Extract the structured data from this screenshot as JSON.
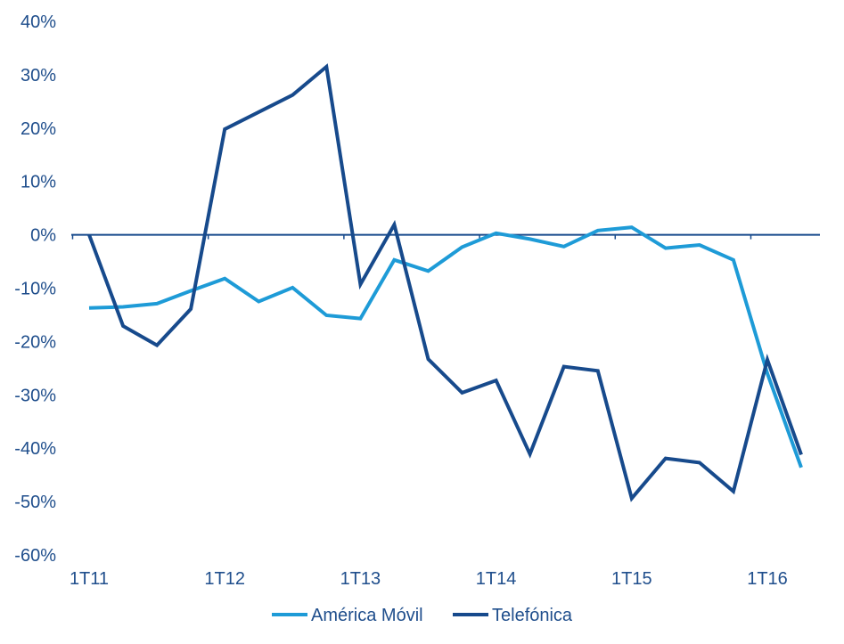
{
  "chart_data": {
    "type": "line",
    "title": "",
    "xlabel": "",
    "ylabel": "",
    "ylim": [
      -60,
      40
    ],
    "y_ticks": [
      "40%",
      "30%",
      "20%",
      "10%",
      "0%",
      "-10%",
      "-20%",
      "-30%",
      "-40%",
      "-50%",
      "-60%"
    ],
    "x_tick_labels": [
      "1T11",
      "1T12",
      "1T13",
      "1T14",
      "1T15",
      "1T16"
    ],
    "categories": [
      "1T11",
      "2T11",
      "3T11",
      "4T11",
      "1T12",
      "2T12",
      "3T12",
      "4T12",
      "1T13",
      "2T13",
      "3T13",
      "4T13",
      "1T14",
      "2T14",
      "3T14",
      "4T14",
      "1T15",
      "2T15",
      "3T15",
      "4T15",
      "1T16",
      "2T16"
    ],
    "legend_position": "bottom",
    "series": [
      {
        "name": "América Móvil",
        "color": "#1e9bd7",
        "values": [
          -13.7,
          -13.5,
          -12.9,
          -10.5,
          -8.2,
          -12.5,
          -9.9,
          -15.1,
          -15.7,
          -4.7,
          -6.8,
          -2.3,
          0.3,
          -0.8,
          -2.2,
          0.8,
          1.4,
          -2.5,
          -1.9,
          -4.7,
          -26.0,
          -43.6
        ]
      },
      {
        "name": "Telefónica",
        "color": "#174a8c",
        "values": [
          0.0,
          -17.1,
          -20.7,
          -13.9,
          19.8,
          23.0,
          26.2,
          31.5,
          -9.3,
          1.9,
          -23.3,
          -29.6,
          -27.3,
          -41.1,
          -24.7,
          -25.5,
          -49.4,
          -41.9,
          -42.7,
          -48.1,
          -23.4,
          -41.2
        ]
      }
    ]
  }
}
